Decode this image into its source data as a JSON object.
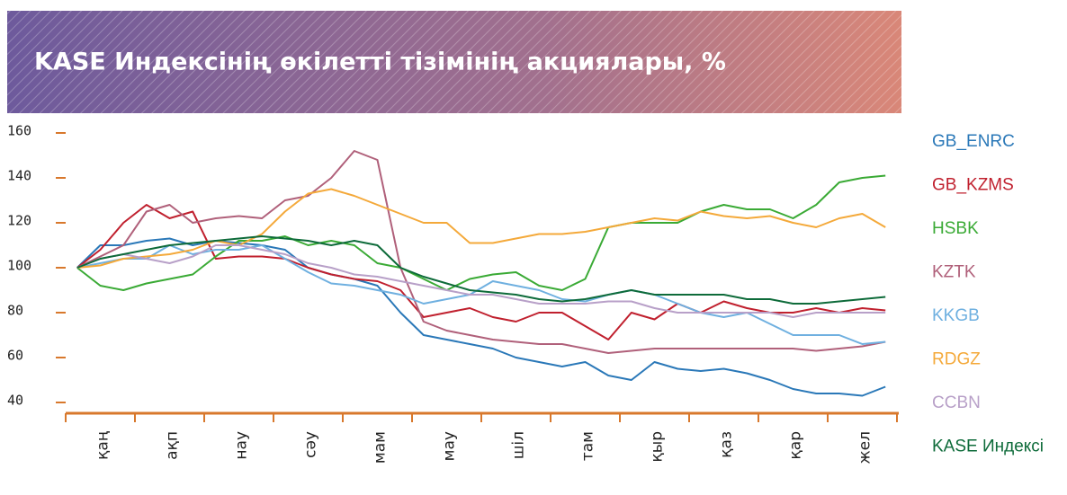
{
  "chart_data": {
    "type": "line",
    "title": "KASE Индексінің өкілетті тізімінің акциялары, %",
    "categories": [
      null,
      "қаң",
      null,
      null,
      "ақп",
      null,
      null,
      "нау",
      null,
      null,
      "сәу",
      null,
      null,
      "мам",
      null,
      null,
      "мау",
      null,
      null,
      "шіл",
      null,
      null,
      "там",
      null,
      null,
      "қыр",
      null,
      null,
      "қаз",
      null,
      null,
      "қар",
      null,
      null,
      "жел",
      null
    ],
    "ylim": [
      40,
      160
    ],
    "yticks": [
      40,
      60,
      80,
      100,
      120,
      140,
      160
    ],
    "series": [
      {
        "name": "GB_ENRC",
        "color": "#2a78b8",
        "values": [
          100,
          110,
          110,
          112,
          113,
          110,
          112,
          111,
          110,
          108,
          100,
          97,
          95,
          92,
          80,
          70,
          68,
          66,
          64,
          60,
          58,
          56,
          58,
          52,
          50,
          58,
          55,
          54,
          55,
          53,
          50,
          46,
          44,
          44,
          43,
          47
        ]
      },
      {
        "name": "GB_KZMS",
        "color": "#c0202e",
        "values": [
          100,
          108,
          120,
          128,
          122,
          125,
          104,
          105,
          105,
          104,
          100,
          97,
          95,
          94,
          90,
          78,
          80,
          82,
          78,
          76,
          80,
          80,
          74,
          68,
          80,
          77,
          84,
          80,
          85,
          82,
          80,
          80,
          82,
          80,
          82,
          81
        ]
      },
      {
        "name": "HSBK",
        "color": "#3aaa35",
        "values": [
          100,
          92,
          90,
          93,
          95,
          97,
          105,
          112,
          112,
          114,
          110,
          112,
          110,
          102,
          100,
          95,
          90,
          95,
          97,
          98,
          92,
          90,
          95,
          118,
          120,
          120,
          120,
          125,
          128,
          126,
          126,
          122,
          128,
          138,
          140,
          141
        ]
      },
      {
        "name": "KZTK",
        "color": "#b0607a",
        "values": [
          100,
          105,
          110,
          125,
          128,
          120,
          122,
          123,
          122,
          130,
          132,
          140,
          152,
          148,
          100,
          76,
          72,
          70,
          68,
          67,
          66,
          66,
          64,
          62,
          63,
          64,
          64,
          64,
          64,
          64,
          64,
          64,
          63,
          64,
          65,
          67
        ]
      },
      {
        "name": "KKGB",
        "color": "#6fb0e0",
        "values": [
          100,
          102,
          104,
          104,
          110,
          106,
          108,
          108,
          110,
          104,
          98,
          93,
          92,
          90,
          88,
          84,
          86,
          88,
          94,
          92,
          90,
          86,
          85,
          88,
          90,
          88,
          84,
          80,
          78,
          80,
          75,
          70,
          70,
          70,
          66,
          67
        ]
      },
      {
        "name": "RDGZ",
        "color": "#f4a93a",
        "values": [
          100,
          101,
          104,
          105,
          106,
          108,
          112,
          110,
          115,
          125,
          133,
          135,
          132,
          128,
          124,
          120,
          120,
          111,
          111,
          113,
          115,
          115,
          116,
          118,
          120,
          122,
          121,
          125,
          123,
          122,
          123,
          120,
          118,
          122,
          124,
          118
        ]
      },
      {
        "name": "CCBN",
        "color": "#b8a0c8",
        "values": [
          100,
          104,
          106,
          104,
          102,
          105,
          110,
          110,
          108,
          106,
          102,
          100,
          97,
          96,
          94,
          92,
          90,
          88,
          88,
          86,
          84,
          84,
          84,
          85,
          85,
          82,
          80,
          80,
          80,
          80,
          80,
          78,
          80,
          80,
          80,
          80
        ]
      },
      {
        "name": "KASE Индексі",
        "color": "#0e6b3a",
        "values": [
          100,
          104,
          106,
          108,
          110,
          111,
          112,
          113,
          114,
          113,
          112,
          110,
          112,
          110,
          100,
          96,
          93,
          90,
          89,
          88,
          86,
          85,
          86,
          88,
          90,
          88,
          88,
          88,
          88,
          86,
          86,
          84,
          84,
          85,
          86,
          87
        ]
      }
    ]
  }
}
